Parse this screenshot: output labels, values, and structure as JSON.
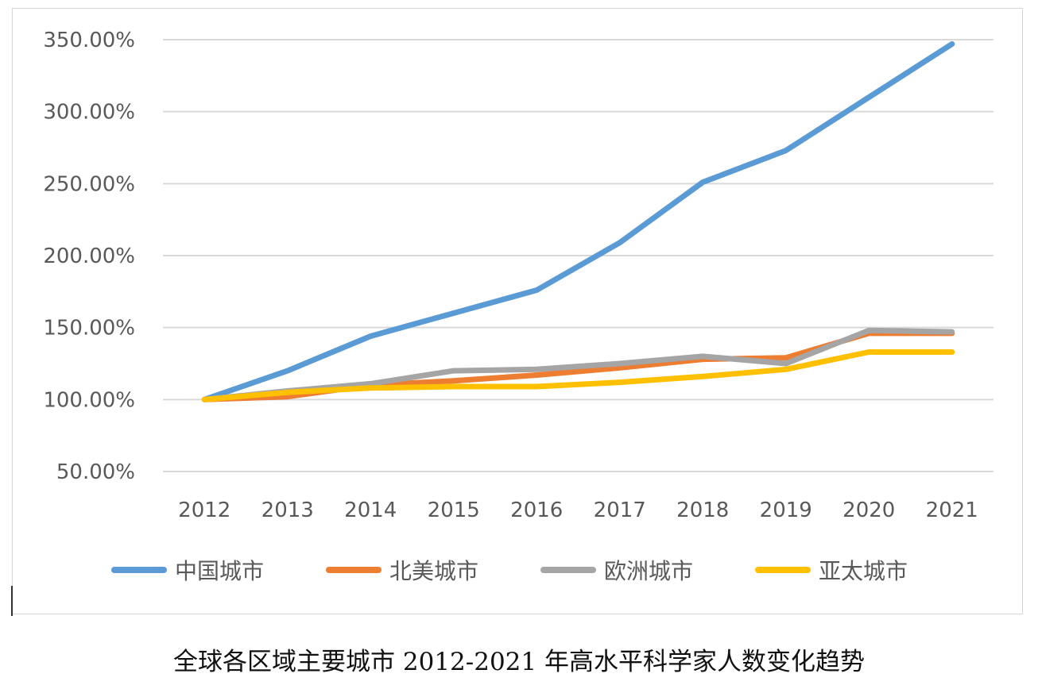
{
  "caption": "全球各区域主要城市 2012-2021 年高水平科学家人数变化趋势",
  "chart_data": {
    "type": "line",
    "title": "",
    "xlabel": "",
    "ylabel": "",
    "categories": [
      "2012",
      "2013",
      "2014",
      "2015",
      "2016",
      "2017",
      "2018",
      "2019",
      "2020",
      "2021"
    ],
    "y_ticks": [
      "50.00%",
      "100.00%",
      "150.00%",
      "200.00%",
      "250.00%",
      "300.00%",
      "350.00%"
    ],
    "ylim": [
      50,
      350
    ],
    "y_unit": "%",
    "grid": true,
    "legend_position": "bottom",
    "series": [
      {
        "name": "中国城市",
        "color": "#5B9BD5",
        "values": [
          100,
          120,
          144,
          160,
          176,
          209,
          251,
          273,
          310,
          347
        ]
      },
      {
        "name": "北美城市",
        "color": "#ED7D31",
        "values": [
          100,
          102,
          110,
          113,
          117,
          122,
          128,
          129,
          146,
          146
        ]
      },
      {
        "name": "欧洲城市",
        "color": "#A5A5A5",
        "values": [
          100,
          106,
          111,
          120,
          121,
          125,
          130,
          125,
          148,
          147
        ]
      },
      {
        "name": "亚太城市",
        "color": "#FFC000",
        "values": [
          100,
          105,
          108,
          109,
          109,
          112,
          116,
          121,
          133,
          133
        ]
      }
    ]
  }
}
